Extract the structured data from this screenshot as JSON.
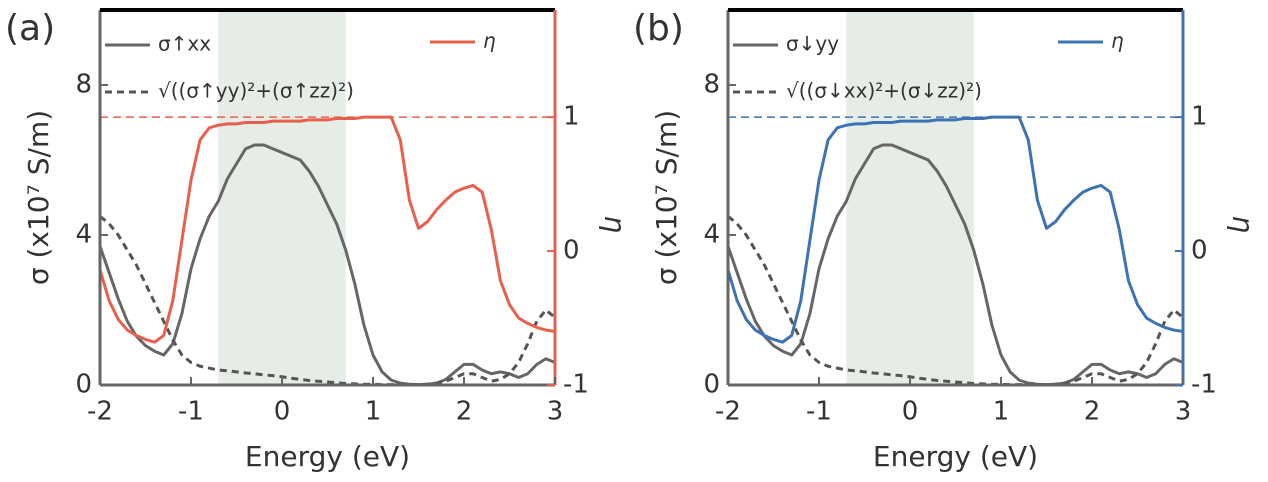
{
  "chart_data": [
    {
      "type": "line",
      "panel_label": "(a)",
      "x_label": "Energy (eV)",
      "y_label": "σ (x10⁷ S/m)",
      "y2_label": "η",
      "x": [
        -2,
        -1.9,
        -1.8,
        -1.7,
        -1.6,
        -1.5,
        -1.4,
        -1.3,
        -1.2,
        -1.1,
        -1,
        -0.9,
        -0.8,
        -0.7,
        -0.6,
        -0.5,
        -0.4,
        -0.3,
        -0.2,
        -0.1,
        0,
        0.1,
        0.2,
        0.3,
        0.4,
        0.5,
        0.6,
        0.7,
        0.8,
        0.9,
        1,
        1.1,
        1.2,
        1.3,
        1.4,
        1.5,
        1.6,
        1.7,
        1.8,
        1.9,
        2,
        2.1,
        2.2,
        2.3,
        2.4,
        2.5,
        2.6,
        2.7,
        2.8,
        2.9,
        3
      ],
      "series": [
        {
          "name": "σ↑xx",
          "color": "#666666",
          "dash": false,
          "values": [
            3.7,
            3.0,
            2.3,
            1.7,
            1.3,
            1.05,
            0.9,
            0.8,
            1.1,
            1.9,
            3.1,
            3.9,
            4.5,
            4.9,
            5.5,
            5.9,
            6.3,
            6.4,
            6.4,
            6.3,
            6.2,
            6.1,
            6.0,
            5.7,
            5.3,
            4.8,
            4.3,
            3.6,
            2.7,
            1.6,
            0.8,
            0.35,
            0.13,
            0.05,
            0.02,
            0.01,
            0.02,
            0.05,
            0.15,
            0.35,
            0.55,
            0.55,
            0.4,
            0.3,
            0.35,
            0.3,
            0.2,
            0.3,
            0.55,
            0.7,
            0.6
          ]
        },
        {
          "name": "√((σ↑yy)²+(σ↑zz)²)",
          "color": "#555555",
          "dash": true,
          "values": [
            4.5,
            4.3,
            4.0,
            3.6,
            3.2,
            2.7,
            2.2,
            1.7,
            1.2,
            0.8,
            0.6,
            0.5,
            0.45,
            0.4,
            0.38,
            0.35,
            0.32,
            0.3,
            0.27,
            0.25,
            0.22,
            0.18,
            0.15,
            0.12,
            0.1,
            0.08,
            0.06,
            0.04,
            0.03,
            0.02,
            0.02,
            0.01,
            0.01,
            0.01,
            0.01,
            0.01,
            0.02,
            0.05,
            0.1,
            0.2,
            0.3,
            0.3,
            0.2,
            0.1,
            0.15,
            0.3,
            0.6,
            1.1,
            1.7,
            2.0,
            1.8
          ]
        },
        {
          "name": "η",
          "color": "#e8604c",
          "dash": false,
          "axis": "y2",
          "values": [
            -0.14,
            -0.37,
            -0.51,
            -0.59,
            -0.63,
            -0.66,
            -0.68,
            -0.63,
            -0.37,
            0.08,
            0.53,
            0.83,
            0.92,
            0.94,
            0.95,
            0.95,
            0.96,
            0.96,
            0.96,
            0.97,
            0.97,
            0.97,
            0.97,
            0.98,
            0.98,
            0.98,
            0.99,
            0.99,
            0.99,
            1.0,
            1.0,
            1.0,
            1.0,
            0.83,
            0.38,
            0.17,
            0.22,
            0.31,
            0.38,
            0.44,
            0.47,
            0.49,
            0.44,
            0.16,
            -0.22,
            -0.4,
            -0.5,
            -0.54,
            -0.57,
            -0.59,
            -0.6
          ]
        }
      ],
      "xlim": [
        -2,
        3
      ],
      "xticks": [
        -2,
        -1,
        0,
        1,
        2,
        3
      ],
      "ylim": [
        0,
        10
      ],
      "yticks": [
        0,
        4,
        8
      ],
      "y2lim": [
        -1,
        1.8
      ],
      "y2ticks": [
        -1,
        0,
        1
      ],
      "y2_color": "#e8604c",
      "shaded_x": [
        -0.7,
        0.7
      ],
      "y2_reference": 1
    },
    {
      "type": "line",
      "panel_label": "(b)",
      "x_label": "Energy (eV)",
      "y_label": "σ (x10⁷ S/m)",
      "y2_label": "η",
      "x": [
        -2,
        -1.9,
        -1.8,
        -1.7,
        -1.6,
        -1.5,
        -1.4,
        -1.3,
        -1.2,
        -1.1,
        -1,
        -0.9,
        -0.8,
        -0.7,
        -0.6,
        -0.5,
        -0.4,
        -0.3,
        -0.2,
        -0.1,
        0,
        0.1,
        0.2,
        0.3,
        0.4,
        0.5,
        0.6,
        0.7,
        0.8,
        0.9,
        1,
        1.1,
        1.2,
        1.3,
        1.4,
        1.5,
        1.6,
        1.7,
        1.8,
        1.9,
        2,
        2.1,
        2.2,
        2.3,
        2.4,
        2.5,
        2.6,
        2.7,
        2.8,
        2.9,
        3
      ],
      "series": [
        {
          "name": "σ↓yy",
          "color": "#666666",
          "dash": false,
          "values": [
            3.7,
            3.0,
            2.3,
            1.7,
            1.3,
            1.05,
            0.9,
            0.8,
            1.1,
            1.9,
            3.1,
            3.9,
            4.5,
            4.9,
            5.5,
            5.9,
            6.3,
            6.4,
            6.4,
            6.3,
            6.2,
            6.1,
            6.0,
            5.7,
            5.3,
            4.8,
            4.3,
            3.6,
            2.7,
            1.6,
            0.8,
            0.35,
            0.13,
            0.05,
            0.02,
            0.01,
            0.02,
            0.05,
            0.15,
            0.35,
            0.55,
            0.55,
            0.4,
            0.3,
            0.35,
            0.3,
            0.2,
            0.3,
            0.55,
            0.7,
            0.6
          ]
        },
        {
          "name": "√((σ↓xx)²+(σ↓zz)²)",
          "color": "#555555",
          "dash": true,
          "values": [
            4.5,
            4.3,
            4.0,
            3.6,
            3.2,
            2.7,
            2.2,
            1.7,
            1.2,
            0.8,
            0.6,
            0.5,
            0.45,
            0.4,
            0.38,
            0.35,
            0.32,
            0.3,
            0.27,
            0.25,
            0.22,
            0.18,
            0.15,
            0.12,
            0.1,
            0.08,
            0.06,
            0.04,
            0.03,
            0.02,
            0.02,
            0.01,
            0.01,
            0.01,
            0.01,
            0.01,
            0.02,
            0.05,
            0.1,
            0.2,
            0.3,
            0.3,
            0.2,
            0.1,
            0.15,
            0.3,
            0.6,
            1.1,
            1.7,
            2.0,
            1.8
          ]
        },
        {
          "name": "η",
          "color": "#3d73b5",
          "dash": false,
          "axis": "y2",
          "values": [
            -0.14,
            -0.37,
            -0.51,
            -0.59,
            -0.63,
            -0.66,
            -0.68,
            -0.63,
            -0.37,
            0.08,
            0.53,
            0.83,
            0.92,
            0.94,
            0.95,
            0.95,
            0.96,
            0.96,
            0.96,
            0.97,
            0.97,
            0.97,
            0.97,
            0.98,
            0.98,
            0.98,
            0.99,
            0.99,
            0.99,
            1.0,
            1.0,
            1.0,
            1.0,
            0.83,
            0.38,
            0.17,
            0.22,
            0.31,
            0.38,
            0.44,
            0.47,
            0.49,
            0.44,
            0.16,
            -0.22,
            -0.4,
            -0.5,
            -0.54,
            -0.57,
            -0.59,
            -0.6
          ]
        }
      ],
      "xlim": [
        -2,
        3
      ],
      "xticks": [
        -2,
        -1,
        0,
        1,
        2,
        3
      ],
      "ylim": [
        0,
        10
      ],
      "yticks": [
        0,
        4,
        8
      ],
      "y2lim": [
        -1,
        1.8
      ],
      "y2ticks": [
        -1,
        0,
        1
      ],
      "y2_color": "#3d73b5",
      "shaded_x": [
        -0.7,
        0.7
      ],
      "y2_reference": 1
    }
  ]
}
